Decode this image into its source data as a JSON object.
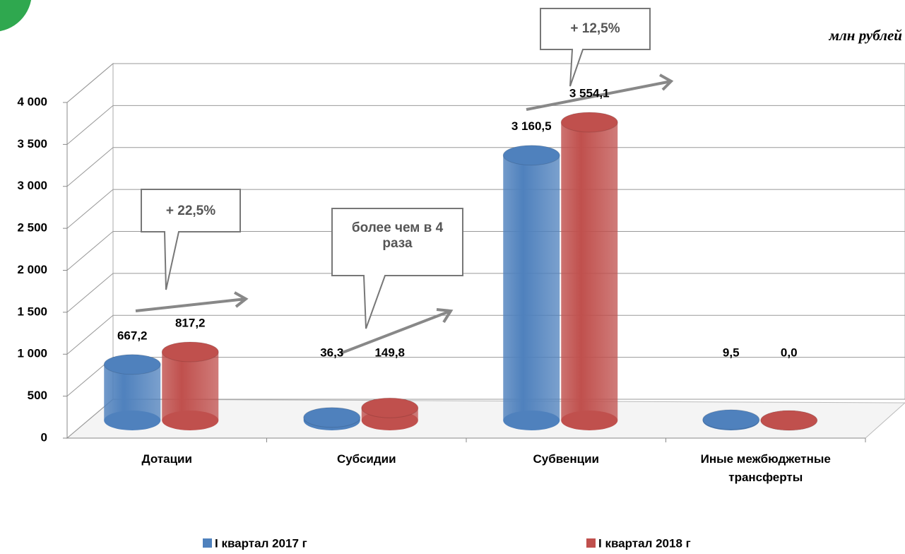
{
  "chart_data": {
    "type": "bar",
    "unit_label": "млн рублей",
    "categories": [
      "Дотации",
      "Субсидии",
      "Субвенции",
      "Иные межбюджетные трансферты"
    ],
    "series": [
      {
        "name": "I квартал 2017 г",
        "color": "#4f81bd",
        "values": [
          667.2,
          36.3,
          3160.5,
          9.5
        ],
        "value_labels": [
          "667,2",
          "36,3",
          "3 160,5",
          "9,5"
        ]
      },
      {
        "name": "I квартал 2018 г",
        "color": "#c0504d",
        "values": [
          817.2,
          149.8,
          3554.1,
          0.0
        ],
        "value_labels": [
          "817,2",
          "149,8",
          "3 554,1",
          "0,0"
        ]
      }
    ],
    "ylim": [
      0,
      4000
    ],
    "yticks": [
      0,
      500,
      {
        "value": 1000,
        "label": "1 000"
      },
      {
        "value": 1500,
        "label": "1 500"
      },
      {
        "value": 2000,
        "label": "2 000"
      },
      {
        "value": 2500,
        "label": "2 500"
      },
      {
        "value": 3000,
        "label": "3 000"
      },
      {
        "value": 3500,
        "label": "3 500"
      },
      {
        "value": 4000,
        "label": "4 000"
      }
    ],
    "grid": true,
    "annotations": [
      "+ 22,5%",
      "более чем в 4 раза",
      "+ 12,5%"
    ]
  }
}
